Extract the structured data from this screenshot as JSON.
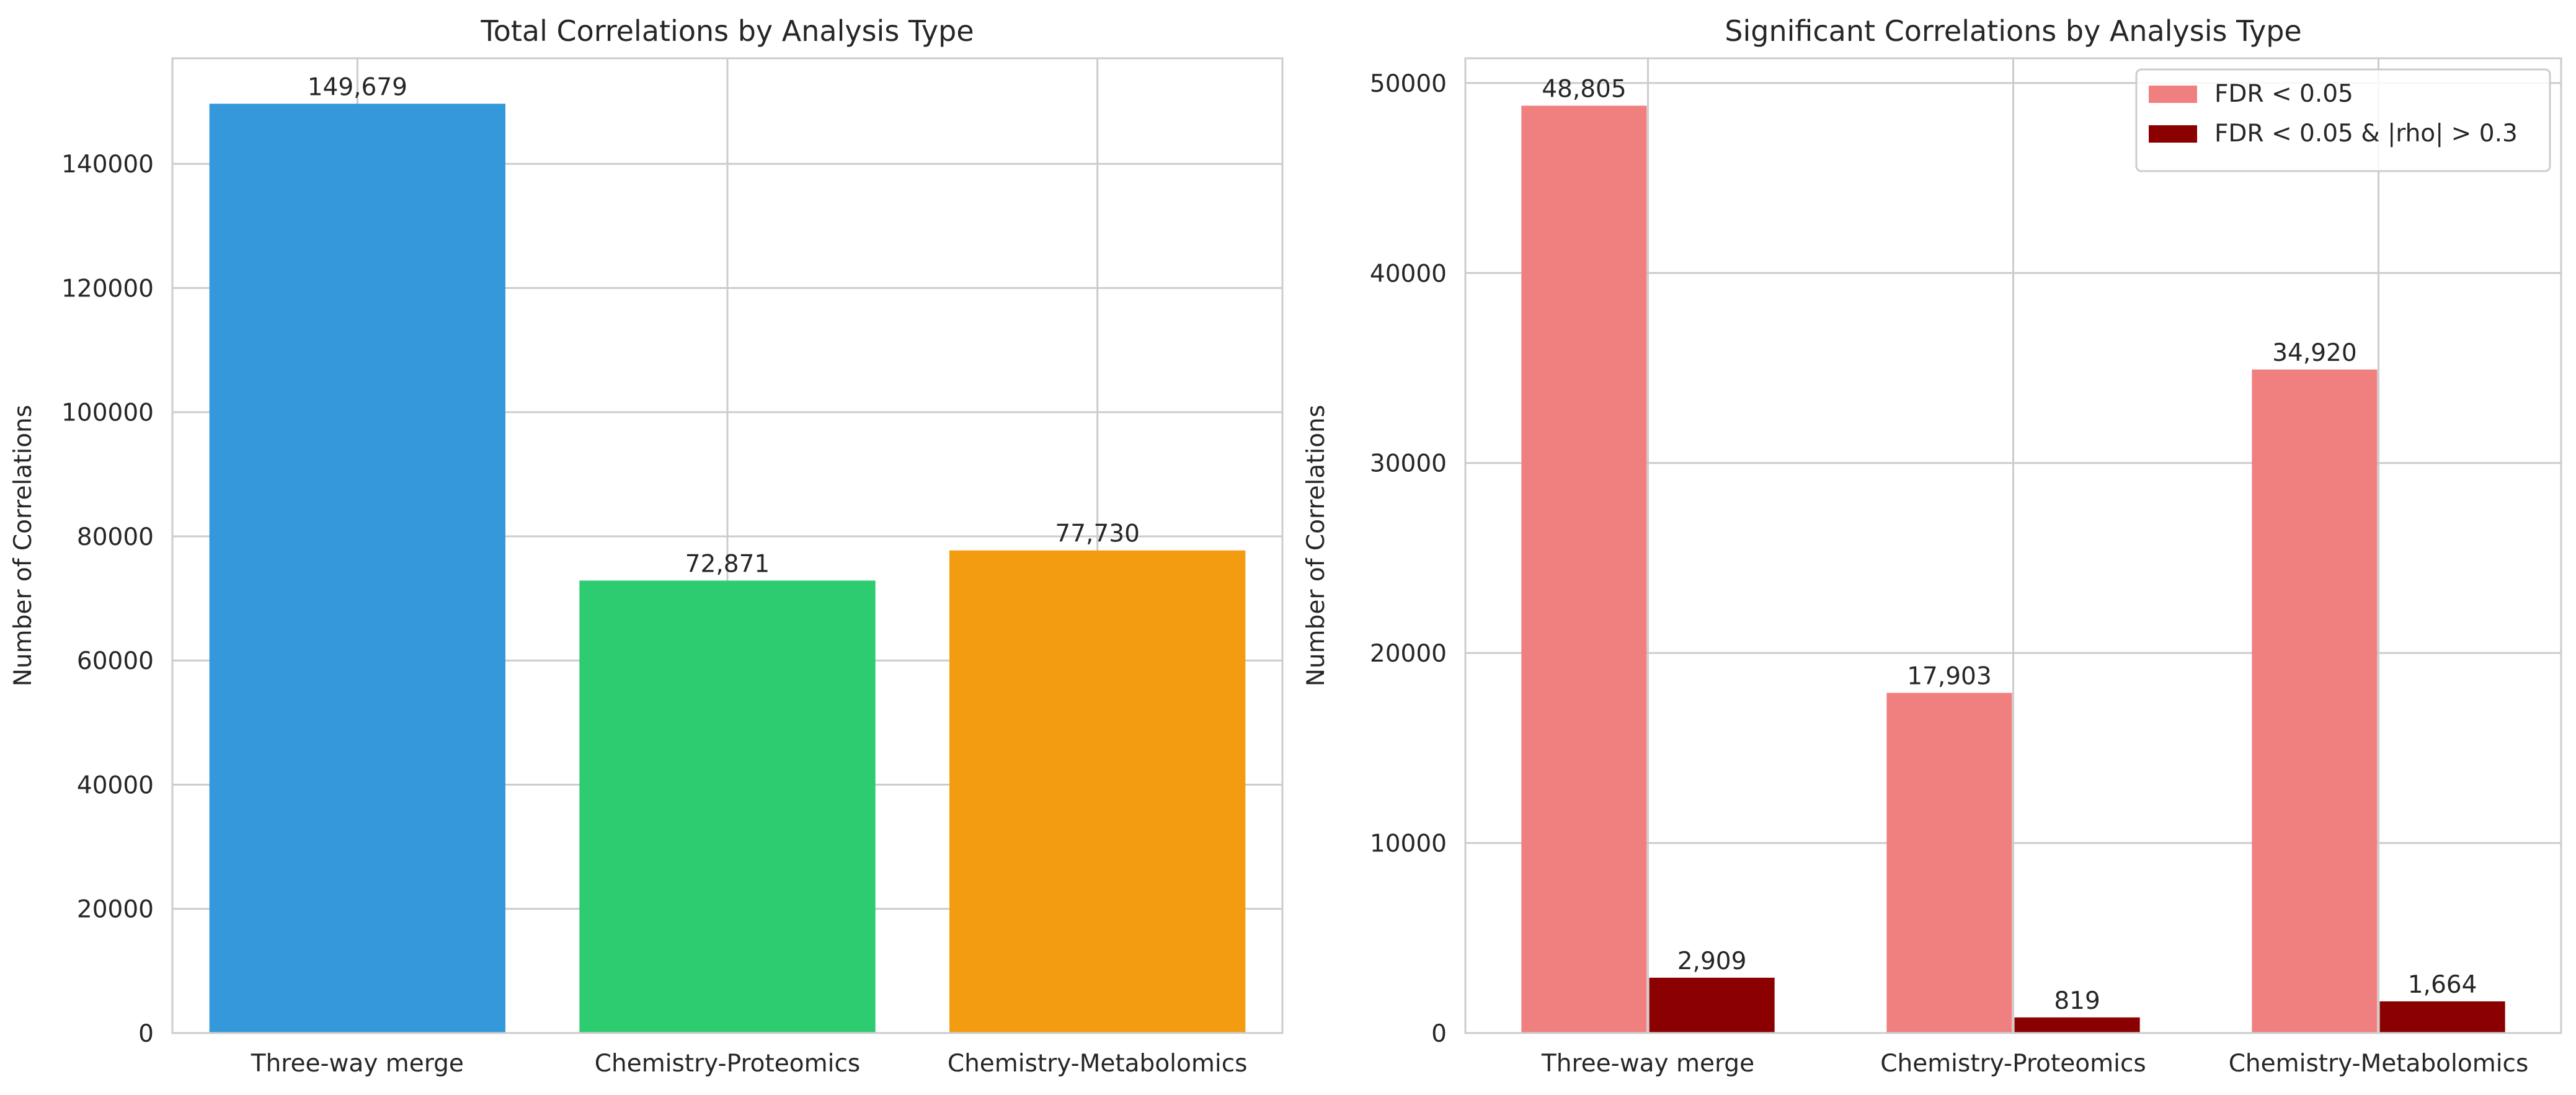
{
  "chart_data": [
    {
      "type": "bar",
      "title": "Total Correlations by Analysis Type",
      "xlabel": "",
      "ylabel": "Number of Correlations",
      "categories": [
        "Three-way merge",
        "Chemistry-Proteomics",
        "Chemistry-Metabolomics"
      ],
      "values": [
        149679,
        72871,
        77730
      ],
      "value_labels": [
        "149,679",
        "72,871",
        "77,730"
      ],
      "colors": [
        "#3498db",
        "#2ecc71",
        "#f39c12"
      ],
      "ylim": [
        0,
        157000
      ],
      "yticks": [
        0,
        20000,
        40000,
        60000,
        80000,
        100000,
        120000,
        140000
      ],
      "grid": true,
      "legend": "none"
    },
    {
      "type": "bar",
      "title": "Significant Correlations by Analysis Type",
      "xlabel": "",
      "ylabel": "Number of Correlations",
      "categories": [
        "Three-way merge",
        "Chemistry-Proteomics",
        "Chemistry-Metabolomics"
      ],
      "series": [
        {
          "name": "FDR < 0.05",
          "values": [
            48805,
            17903,
            34920
          ],
          "value_labels": [
            "48,805",
            "17,903",
            "34,920"
          ],
          "color": "#f08080"
        },
        {
          "name": "FDR < 0.05 & |rho| > 0.3",
          "values": [
            2909,
            819,
            1664
          ],
          "value_labels": [
            "2,909",
            "819",
            "1,664"
          ],
          "color": "#8b0000"
        }
      ],
      "ylim": [
        0,
        51300
      ],
      "yticks": [
        0,
        10000,
        20000,
        30000,
        40000,
        50000
      ],
      "grid": true,
      "legend": "top-right"
    }
  ]
}
